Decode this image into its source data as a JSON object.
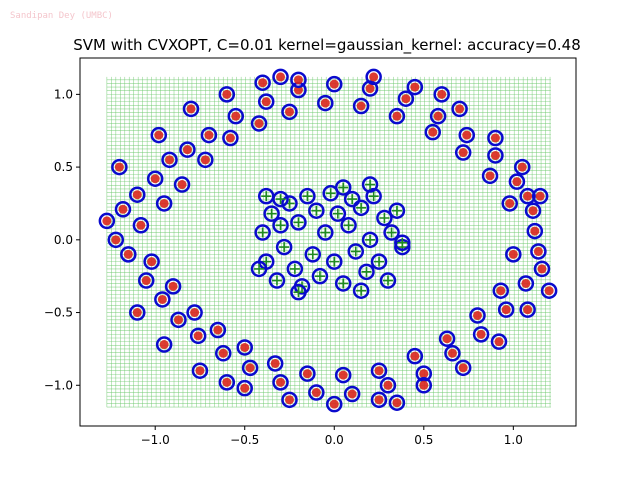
{
  "watermark": "Sandipan Dey (UMBC)",
  "chart_data": {
    "type": "scatter",
    "title": "SVM with CVXOPT, C=0.01 kernel=gaussian_kernel: accuracy=0.48",
    "xlabel": "",
    "ylabel": "",
    "xlim": [
      -1.42,
      1.35
    ],
    "ylim": [
      -1.28,
      1.25
    ],
    "xticks": [
      -1.0,
      -0.5,
      0.0,
      0.5,
      1.0
    ],
    "xtick_labels": [
      "−1.0",
      "−0.5",
      "0.0",
      "0.5",
      "1.0"
    ],
    "yticks": [
      -1.0,
      -0.5,
      0.0,
      0.5,
      1.0
    ],
    "ytick_labels": [
      "−1.0",
      "−0.5",
      "0.0",
      "0.5",
      "1.0"
    ],
    "grid": false,
    "colors": {
      "outer_points": "#d9261c",
      "support_vector_ring": "#0a0acd",
      "inner_markers": "#1f8a1f",
      "mesh": "#6cc86c"
    },
    "mesh": {
      "x_range": [
        -1.27,
        1.21
      ],
      "y_range": [
        -1.15,
        1.12
      ],
      "step": 0.025
    },
    "series": [
      {
        "marker": "circle",
        "points": [
          [
            -1.27,
            0.13
          ],
          [
            -1.22,
            0.0
          ],
          [
            -1.18,
            0.21
          ],
          [
            -1.15,
            -0.1
          ],
          [
            -1.1,
            0.31
          ],
          [
            -1.05,
            -0.28
          ],
          [
            -1.0,
            0.42
          ],
          [
            -0.96,
            -0.41
          ],
          [
            -0.92,
            0.55
          ],
          [
            -0.87,
            -0.55
          ],
          [
            -0.82,
            0.62
          ],
          [
            -0.76,
            -0.66
          ],
          [
            -0.7,
            0.72
          ],
          [
            -0.62,
            -0.78
          ],
          [
            -0.55,
            0.85
          ],
          [
            -0.47,
            -0.88
          ],
          [
            -0.38,
            0.95
          ],
          [
            -0.3,
            -0.98
          ],
          [
            -0.2,
            1.03
          ],
          [
            -0.1,
            -1.05
          ],
          [
            0.0,
            1.07
          ],
          [
            0.1,
            -1.06
          ],
          [
            0.2,
            1.04
          ],
          [
            0.3,
            -1.0
          ],
          [
            0.4,
            0.97
          ],
          [
            0.5,
            -0.92
          ],
          [
            0.58,
            0.85
          ],
          [
            0.66,
            -0.78
          ],
          [
            0.74,
            0.72
          ],
          [
            0.82,
            -0.65
          ],
          [
            0.9,
            0.58
          ],
          [
            0.96,
            -0.48
          ],
          [
            1.02,
            0.4
          ],
          [
            1.07,
            -0.3
          ],
          [
            1.11,
            0.2
          ],
          [
            1.14,
            -0.08
          ],
          [
            1.12,
            0.06
          ],
          [
            1.08,
            0.3
          ],
          [
            -1.08,
            0.1
          ],
          [
            -1.02,
            -0.15
          ],
          [
            -0.95,
            0.25
          ],
          [
            -0.9,
            -0.32
          ],
          [
            -0.85,
            0.38
          ],
          [
            -0.78,
            -0.5
          ],
          [
            -0.72,
            0.55
          ],
          [
            -0.65,
            -0.62
          ],
          [
            -0.58,
            0.7
          ],
          [
            -0.5,
            -0.74
          ],
          [
            -0.42,
            0.8
          ],
          [
            -0.33,
            -0.85
          ],
          [
            -0.25,
            0.88
          ],
          [
            -0.15,
            -0.92
          ],
          [
            -0.05,
            0.94
          ],
          [
            0.05,
            -0.93
          ],
          [
            0.15,
            0.92
          ],
          [
            0.25,
            -0.9
          ],
          [
            0.35,
            0.85
          ],
          [
            0.45,
            -0.8
          ],
          [
            0.55,
            0.74
          ],
          [
            0.63,
            -0.68
          ],
          [
            0.72,
            0.6
          ],
          [
            0.8,
            -0.52
          ],
          [
            0.87,
            0.44
          ],
          [
            0.93,
            -0.35
          ],
          [
            0.98,
            0.25
          ],
          [
            1.0,
            -0.1
          ],
          [
            -0.98,
            0.72
          ],
          [
            -0.8,
            0.9
          ],
          [
            -0.6,
            1.0
          ],
          [
            -0.4,
            1.08
          ],
          [
            -0.2,
            1.1
          ],
          [
            0.22,
            1.12
          ],
          [
            0.45,
            1.05
          ],
          [
            0.7,
            0.9
          ],
          [
            0.9,
            0.7
          ],
          [
            1.05,
            0.5
          ],
          [
            1.15,
            0.3
          ],
          [
            -1.1,
            -0.5
          ],
          [
            -0.95,
            -0.72
          ],
          [
            -0.75,
            -0.9
          ],
          [
            -0.5,
            -1.02
          ],
          [
            -0.25,
            -1.1
          ],
          [
            0.0,
            -1.13
          ],
          [
            0.25,
            -1.1
          ],
          [
            0.5,
            -1.0
          ],
          [
            0.72,
            -0.88
          ],
          [
            0.92,
            -0.7
          ],
          [
            1.08,
            -0.48
          ],
          [
            1.16,
            -0.2
          ],
          [
            -1.2,
            0.5
          ],
          [
            -0.3,
            1.12
          ],
          [
            0.6,
            1.0
          ],
          [
            1.2,
            -0.35
          ],
          [
            -0.6,
            -0.98
          ],
          [
            0.35,
            -1.12
          ]
        ]
      },
      {
        "marker": "plus",
        "points": [
          [
            -0.4,
            0.05
          ],
          [
            -0.38,
            -0.15
          ],
          [
            -0.35,
            0.18
          ],
          [
            -0.32,
            -0.28
          ],
          [
            -0.3,
            0.1
          ],
          [
            -0.28,
            -0.05
          ],
          [
            -0.25,
            0.25
          ],
          [
            -0.22,
            -0.2
          ],
          [
            -0.2,
            0.12
          ],
          [
            -0.18,
            -0.32
          ],
          [
            -0.15,
            0.3
          ],
          [
            -0.12,
            -0.1
          ],
          [
            -0.1,
            0.2
          ],
          [
            -0.08,
            -0.25
          ],
          [
            -0.05,
            0.05
          ],
          [
            -0.02,
            0.32
          ],
          [
            0.0,
            -0.15
          ],
          [
            0.02,
            0.18
          ],
          [
            0.05,
            -0.3
          ],
          [
            0.08,
            0.1
          ],
          [
            0.1,
            0.28
          ],
          [
            0.12,
            -0.08
          ],
          [
            0.15,
            0.22
          ],
          [
            0.18,
            -0.22
          ],
          [
            0.2,
            0.0
          ],
          [
            0.22,
            0.3
          ],
          [
            0.25,
            -0.15
          ],
          [
            0.28,
            0.15
          ],
          [
            0.3,
            -0.28
          ],
          [
            0.32,
            0.05
          ],
          [
            0.35,
            0.2
          ],
          [
            0.38,
            -0.05
          ],
          [
            -0.42,
            -0.2
          ],
          [
            0.2,
            0.38
          ],
          [
            0.38,
            -0.02
          ],
          [
            -0.38,
            0.3
          ],
          [
            0.15,
            -0.35
          ],
          [
            -0.2,
            -0.36
          ],
          [
            0.05,
            0.36
          ],
          [
            -0.3,
            0.28
          ]
        ]
      }
    ]
  }
}
